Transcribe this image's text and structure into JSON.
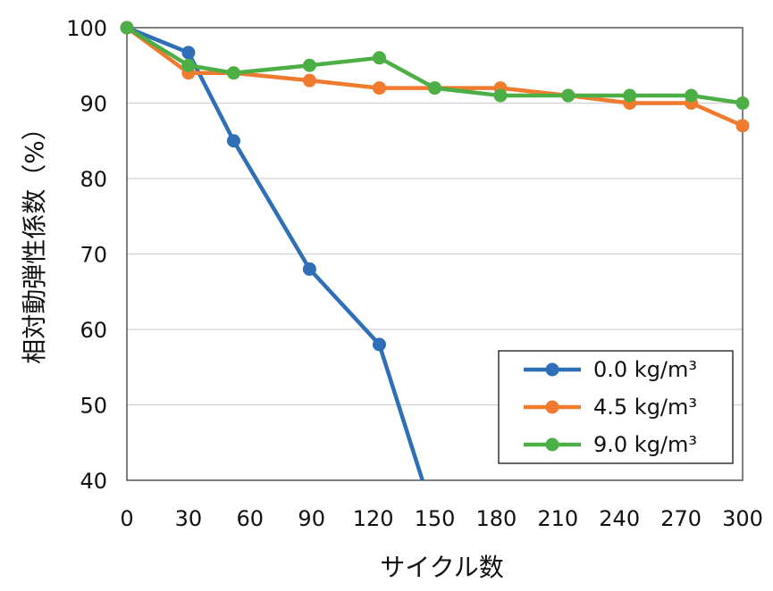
{
  "chart_data": {
    "type": "line",
    "title": "",
    "xlabel": "サイクル数",
    "ylabel": "相対動弾性係数（%）",
    "xlim": [
      0,
      300
    ],
    "ylim": [
      40,
      100
    ],
    "x_ticks": [
      "0",
      "30",
      "60",
      "90",
      "120",
      "150",
      "180",
      "210",
      "240",
      "270",
      "300"
    ],
    "y_ticks": [
      "40",
      "50",
      "60",
      "70",
      "80",
      "90",
      "100"
    ],
    "grid": "horizontal",
    "legend_position": "bottom-right",
    "series": [
      {
        "name": "0.0 kg/m³",
        "color": "#2e6fb8",
        "x": [
          0,
          30,
          52,
          89,
          123
        ],
        "y": [
          100,
          96.7,
          85,
          68,
          58
        ],
        "continues_below": {
          "x": 144,
          "y": 40
        }
      },
      {
        "name": "4.5 kg/m³",
        "color": "#f07a2e",
        "x": [
          0,
          30,
          52,
          89,
          123,
          150,
          182,
          215,
          245,
          275,
          300
        ],
        "y": [
          100,
          94,
          94,
          93,
          92,
          92,
          92,
          91,
          90,
          90,
          87
        ]
      },
      {
        "name": "9.0 kg/m³",
        "color": "#4caf45",
        "x": [
          0,
          30,
          52,
          89,
          123,
          150,
          182,
          215,
          245,
          275,
          300
        ],
        "y": [
          100,
          95,
          94,
          95,
          96,
          92,
          91,
          91,
          91,
          91,
          90
        ]
      }
    ]
  }
}
